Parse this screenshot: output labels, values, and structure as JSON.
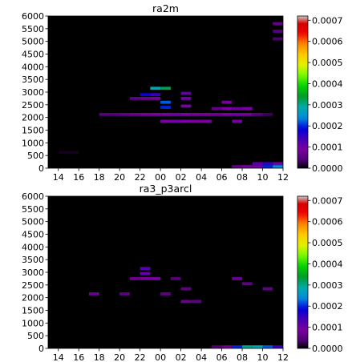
{
  "chart_data": [
    {
      "type": "heatmap",
      "title": "ra2m",
      "xlabel": "",
      "ylabel": "",
      "x_ticks": [
        "14",
        "16",
        "18",
        "20",
        "22",
        "00",
        "02",
        "04",
        "06",
        "08",
        "10",
        "12"
      ],
      "x_hours": [
        14,
        16,
        18,
        20,
        22,
        24,
        26,
        28,
        30,
        32,
        34,
        36
      ],
      "xlim": [
        13,
        36
      ],
      "y_ticks": [
        0,
        500,
        1000,
        1500,
        2000,
        2500,
        3000,
        3500,
        4000,
        4500,
        5000,
        5500,
        6000
      ],
      "ylim": [
        0,
        6000
      ],
      "colorbar": {
        "ticks": [
          "0.0000",
          "0.0001",
          "0.0002",
          "0.0003",
          "0.0004",
          "0.0005",
          "0.0006",
          "0.0007"
        ],
        "range": [
          0,
          0.00072
        ],
        "colormap": "nipy_spectral"
      },
      "cells": [
        {
          "x": 14.5,
          "y": 620,
          "v": 1e-05
        },
        {
          "x": 15.5,
          "y": 620,
          "v": 1e-05
        },
        {
          "x": 18.5,
          "y": 2120,
          "v": 5e-05
        },
        {
          "x": 19.5,
          "y": 2120,
          "v": 5e-05
        },
        {
          "x": 20.5,
          "y": 2120,
          "v": 6e-05
        },
        {
          "x": 21.5,
          "y": 2120,
          "v": 7e-05
        },
        {
          "x": 22.5,
          "y": 2120,
          "v": 8e-05
        },
        {
          "x": 23.5,
          "y": 2120,
          "v": 9e-05
        },
        {
          "x": 24.5,
          "y": 2120,
          "v": 9e-05
        },
        {
          "x": 25.5,
          "y": 2120,
          "v": 0.0001
        },
        {
          "x": 26.5,
          "y": 2120,
          "v": 9e-05
        },
        {
          "x": 27.5,
          "y": 2120,
          "v": 8e-05
        },
        {
          "x": 28.5,
          "y": 2120,
          "v": 8e-05
        },
        {
          "x": 29.5,
          "y": 2120,
          "v": 7e-05
        },
        {
          "x": 30.5,
          "y": 2120,
          "v": 9e-05
        },
        {
          "x": 31.5,
          "y": 2120,
          "v": 0.0001
        },
        {
          "x": 32.5,
          "y": 2120,
          "v": 8e-05
        },
        {
          "x": 33.5,
          "y": 2120,
          "v": 5e-05
        },
        {
          "x": 34.5,
          "y": 2120,
          "v": 3e-05
        },
        {
          "x": 21.5,
          "y": 2750,
          "v": 6e-05
        },
        {
          "x": 22.5,
          "y": 2750,
          "v": 7e-05
        },
        {
          "x": 23.5,
          "y": 2750,
          "v": 8e-05
        },
        {
          "x": 22.5,
          "y": 2900,
          "v": 0.00018
        },
        {
          "x": 23.5,
          "y": 2900,
          "v": 0.00015
        },
        {
          "x": 23.5,
          "y": 3150,
          "v": 0.00028
        },
        {
          "x": 24.5,
          "y": 3150,
          "v": 0.00032
        },
        {
          "x": 24.5,
          "y": 2400,
          "v": 0.0002
        },
        {
          "x": 24.5,
          "y": 2600,
          "v": 0.00022
        },
        {
          "x": 24.5,
          "y": 1850,
          "v": 9e-05
        },
        {
          "x": 25.5,
          "y": 1850,
          "v": 0.0001
        },
        {
          "x": 26.5,
          "y": 1850,
          "v": 9e-05
        },
        {
          "x": 26.5,
          "y": 2450,
          "v": 9e-05
        },
        {
          "x": 26.5,
          "y": 2750,
          "v": 0.0001
        },
        {
          "x": 26.5,
          "y": 2950,
          "v": 0.00011
        },
        {
          "x": 27.5,
          "y": 1850,
          "v": 8e-05
        },
        {
          "x": 28.5,
          "y": 1850,
          "v": 9e-05
        },
        {
          "x": 29.5,
          "y": 2350,
          "v": 6e-05
        },
        {
          "x": 30.5,
          "y": 2350,
          "v": 9e-05
        },
        {
          "x": 30.5,
          "y": 2600,
          "v": 8e-05
        },
        {
          "x": 31.5,
          "y": 1850,
          "v": 8e-05
        },
        {
          "x": 31.5,
          "y": 2350,
          "v": 7e-05
        },
        {
          "x": 32.5,
          "y": 2350,
          "v": 9e-05
        },
        {
          "x": 35.5,
          "y": 5700,
          "v": 6e-05
        },
        {
          "x": 35.5,
          "y": 5400,
          "v": 5e-05
        },
        {
          "x": 35.5,
          "y": 5100,
          "v": 4e-05
        },
        {
          "x": 31.5,
          "y": 60,
          "v": 6e-05
        },
        {
          "x": 32.5,
          "y": 60,
          "v": 8e-05
        },
        {
          "x": 33.5,
          "y": 60,
          "v": 0.0001
        },
        {
          "x": 34.5,
          "y": 60,
          "v": 0.0002
        },
        {
          "x": 35.5,
          "y": 60,
          "v": 0.00024
        },
        {
          "x": 33.5,
          "y": 180,
          "v": 0.00012
        },
        {
          "x": 34.5,
          "y": 180,
          "v": 0.00015
        },
        {
          "x": 35.5,
          "y": 180,
          "v": 0.0001
        }
      ]
    },
    {
      "type": "heatmap",
      "title": "ra3_p3arcl",
      "xlabel": "",
      "ylabel": "",
      "x_ticks": [
        "14",
        "16",
        "18",
        "20",
        "22",
        "00",
        "02",
        "04",
        "06",
        "08",
        "10",
        "12"
      ],
      "x_hours": [
        14,
        16,
        18,
        20,
        22,
        24,
        26,
        28,
        30,
        32,
        34,
        36
      ],
      "xlim": [
        13,
        36
      ],
      "y_ticks": [
        0,
        500,
        1000,
        1500,
        2000,
        2500,
        3000,
        3500,
        4000,
        4500,
        5000,
        5500,
        6000
      ],
      "ylim": [
        0,
        6000
      ],
      "colorbar": {
        "ticks": [
          "0.0000",
          "0.0001",
          "0.0002",
          "0.0003",
          "0.0004",
          "0.0005",
          "0.0006",
          "0.0007"
        ],
        "range": [
          0,
          0.00072
        ],
        "colormap": "nipy_spectral"
      },
      "cells": [
        {
          "x": 17.5,
          "y": 2150,
          "v": 7e-05
        },
        {
          "x": 20.5,
          "y": 2150,
          "v": 6e-05
        },
        {
          "x": 21.5,
          "y": 2750,
          "v": 7e-05
        },
        {
          "x": 22.5,
          "y": 2750,
          "v": 8e-05
        },
        {
          "x": 22.5,
          "y": 2950,
          "v": 0.00011
        },
        {
          "x": 22.5,
          "y": 3150,
          "v": 0.00012
        },
        {
          "x": 23.5,
          "y": 2750,
          "v": 9e-05
        },
        {
          "x": 24.5,
          "y": 2150,
          "v": 6e-05
        },
        {
          "x": 25.5,
          "y": 2750,
          "v": 5e-05
        },
        {
          "x": 26.5,
          "y": 2350,
          "v": 6e-05
        },
        {
          "x": 26.5,
          "y": 1850,
          "v": 7e-05
        },
        {
          "x": 27.5,
          "y": 1850,
          "v": 6e-05
        },
        {
          "x": 31.5,
          "y": 2750,
          "v": 7e-05
        },
        {
          "x": 32.5,
          "y": 2550,
          "v": 6e-05
        },
        {
          "x": 34.5,
          "y": 2350,
          "v": 6e-05
        },
        {
          "x": 29.5,
          "y": 60,
          "v": 4e-05
        },
        {
          "x": 30.5,
          "y": 60,
          "v": 7e-05
        },
        {
          "x": 31.5,
          "y": 60,
          "v": 0.0002
        },
        {
          "x": 32.5,
          "y": 60,
          "v": 0.0003
        },
        {
          "x": 33.5,
          "y": 60,
          "v": 0.00028
        },
        {
          "x": 34.5,
          "y": 60,
          "v": 0.00022
        },
        {
          "x": 35.5,
          "y": 60,
          "v": 0.00015
        }
      ]
    }
  ]
}
